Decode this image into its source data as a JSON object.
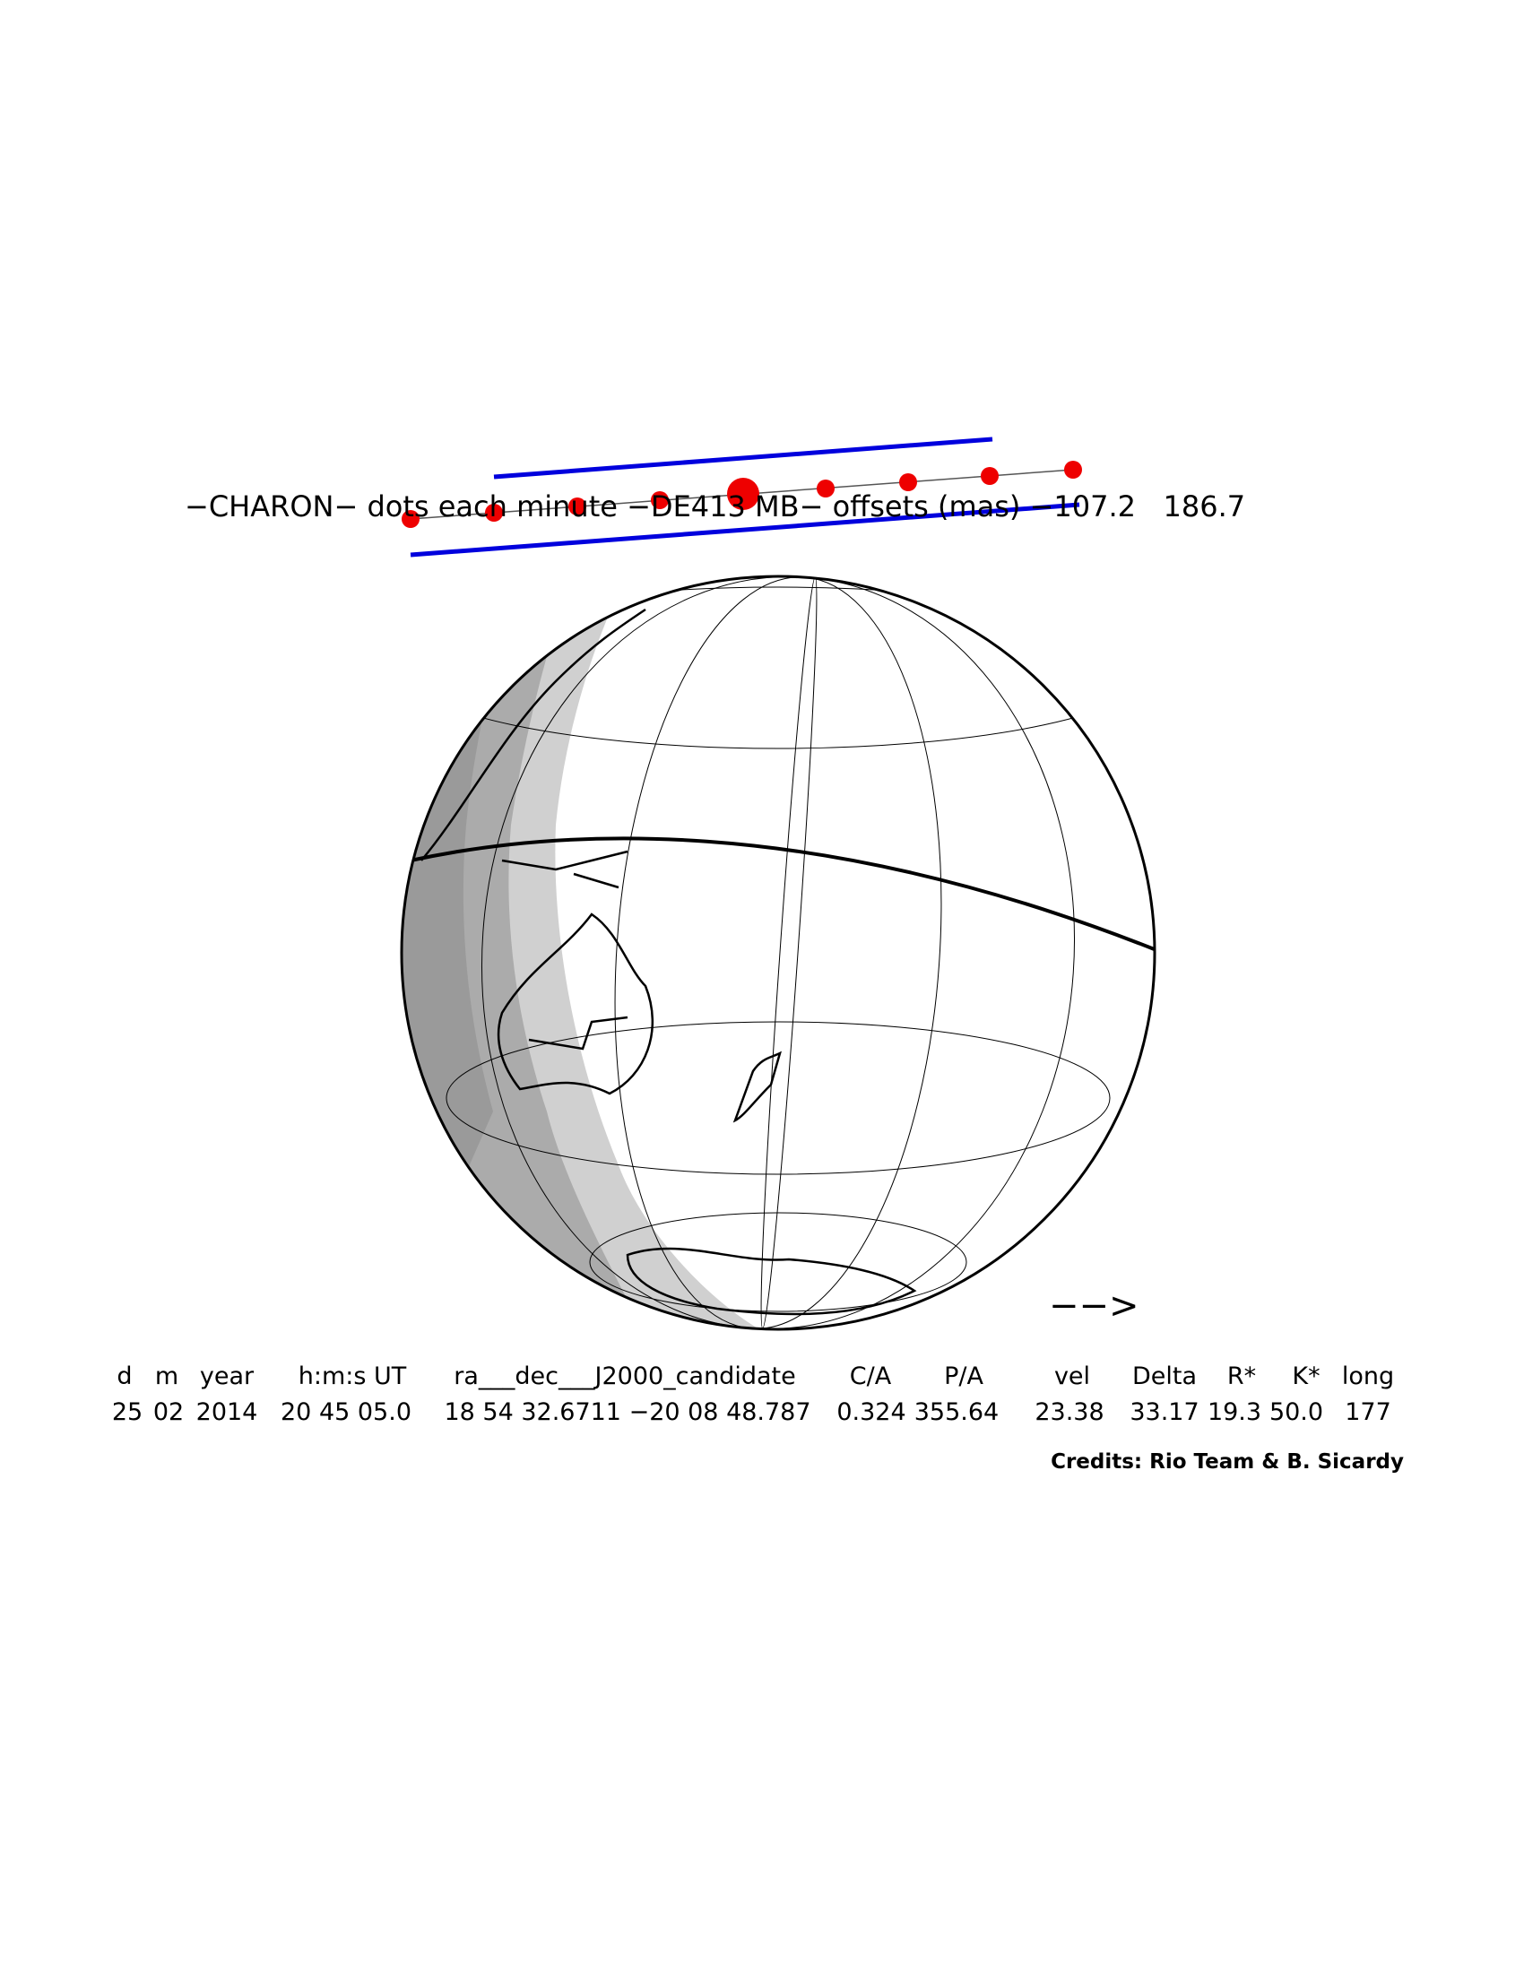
{
  "title": "−CHARON− dots each minute −DE413 MB− offsets (mas) −107.2   186.7",
  "direction_arrow": "−−>",
  "table": {
    "headers": [
      "d",
      "m",
      "year",
      "h:m:s UT",
      "ra___dec___J2000_candidate",
      "C/A",
      "P/A",
      "vel",
      "Delta",
      "R*",
      "K*",
      "long"
    ],
    "rows": [
      [
        "25",
        "02",
        "2014",
        "20 45 05.0",
        "18 54 32.6711 −20 08 48.787",
        "0.324",
        "355.64",
        "23.38",
        "33.17",
        "19.3",
        "50.0",
        "177"
      ]
    ]
  },
  "credits": "Credits: Rio Team & B. Sicardy"
}
